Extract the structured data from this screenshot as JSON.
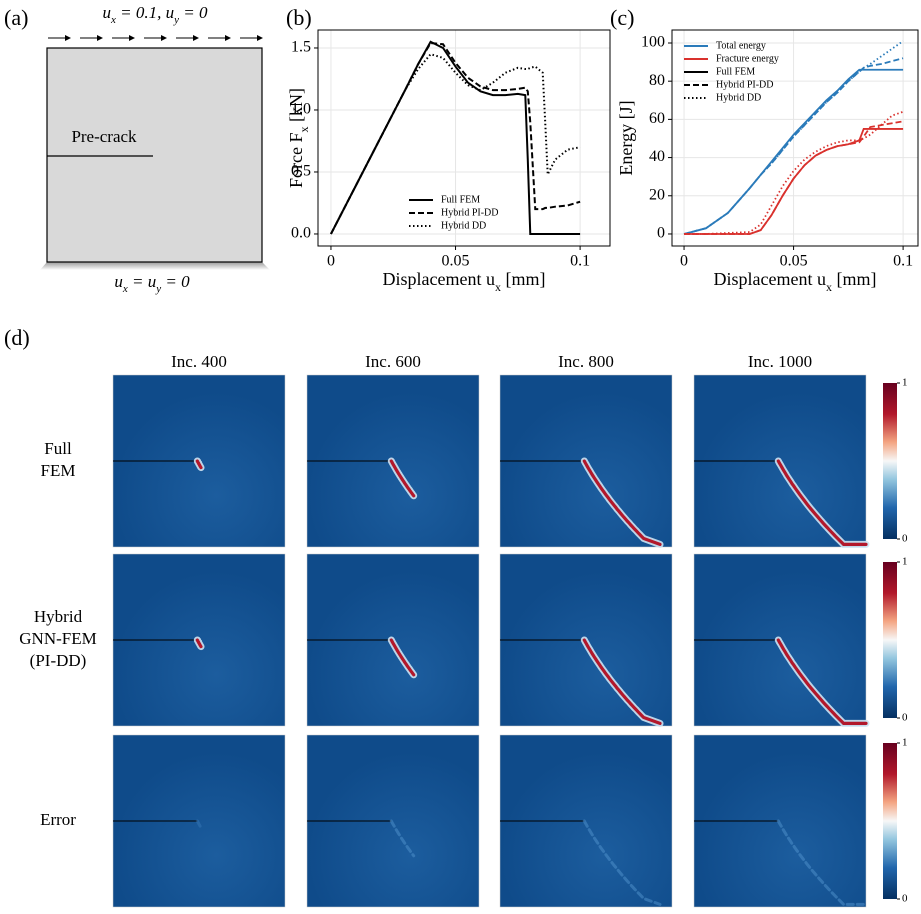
{
  "panel_labels": [
    "(a)",
    "(b)",
    "(c)",
    "(d)"
  ],
  "schematic": {
    "top_bc": [
      "u",
      "x",
      " = 0.1,  ",
      "u",
      "y",
      " = 0"
    ],
    "crack_label": "Pre-crack",
    "bottom_bc": [
      "u",
      "x",
      " = ",
      "u",
      "y",
      " = 0"
    ]
  },
  "chart_data": [
    {
      "type": "line",
      "x_label": [
        "Displacement  u",
        "x",
        "  [mm]"
      ],
      "y_label": [
        "Force  F",
        "x",
        "  [kN]"
      ],
      "x": [
        0,
        0.01,
        0.02,
        0.03,
        0.035,
        0.04,
        0.045,
        0.05,
        0.055,
        0.06,
        0.065,
        0.07,
        0.075,
        0.078,
        0.079,
        0.08,
        0.082,
        0.085,
        0.086,
        0.087,
        0.09,
        0.095,
        0.1
      ],
      "series": [
        {
          "name": "Full FEM",
          "color": "#000000",
          "dash": "solid",
          "values": [
            0,
            0.39,
            0.78,
            1.17,
            1.37,
            1.55,
            1.5,
            1.35,
            1.22,
            1.15,
            1.12,
            1.12,
            1.13,
            1.12,
            0.6,
            0,
            0,
            0,
            0,
            0,
            0,
            0,
            0
          ]
        },
        {
          "name": "Hybrid PI-DD",
          "color": "#000000",
          "dash": "dashed",
          "values": [
            0,
            0.39,
            0.78,
            1.17,
            1.37,
            1.54,
            1.53,
            1.38,
            1.26,
            1.19,
            1.16,
            1.16,
            1.17,
            1.18,
            1.15,
            0.9,
            0.2,
            0.2,
            0.21,
            0.21,
            0.22,
            0.23,
            0.26
          ]
        },
        {
          "name": "Hybrid DD",
          "color": "#000000",
          "dash": "dotted",
          "values": [
            0,
            0.39,
            0.78,
            1.17,
            1.33,
            1.45,
            1.42,
            1.3,
            1.2,
            1.16,
            1.22,
            1.3,
            1.34,
            1.33,
            1.33,
            1.34,
            1.35,
            1.3,
            0.9,
            0.48,
            0.6,
            0.68,
            0.7
          ]
        }
      ],
      "xlim": [
        -0.0052,
        0.112
      ],
      "ylim": [
        -0.097,
        1.645
      ],
      "xticks": [
        0,
        0.05,
        0.1
      ],
      "yticks": [
        {
          "value": 0,
          "label": "0.0"
        },
        0.5,
        {
          "value": 1,
          "label": "1.0"
        },
        1.5
      ],
      "grid": true,
      "legend": "lower center"
    },
    {
      "type": "line",
      "x_label": [
        "Displacement  u",
        "x",
        "  [mm]"
      ],
      "y_label": [
        "Energy [J]"
      ],
      "x": [
        0,
        0.01,
        0.02,
        0.03,
        0.035,
        0.04,
        0.045,
        0.05,
        0.055,
        0.06,
        0.065,
        0.07,
        0.075,
        0.08,
        0.082,
        0.085,
        0.09,
        0.095,
        0.1
      ],
      "series": [
        {
          "name": "Total energy",
          "method": "Full FEM",
          "color": "#2b7bba",
          "dash": "solid",
          "values": [
            0,
            3,
            11,
            24,
            31,
            38,
            45,
            52,
            58,
            64,
            70,
            75,
            81,
            86,
            86,
            86,
            86,
            86,
            86
          ]
        },
        {
          "name": "Total energy",
          "method": "Hybrid PI-DD",
          "color": "#2b7bba",
          "dash": "dashed",
          "values": [
            0,
            3,
            11,
            24,
            31,
            37,
            44,
            51,
            57,
            63,
            69,
            74,
            80,
            85,
            87,
            88,
            89,
            90.5,
            92
          ]
        },
        {
          "name": "Total energy",
          "method": "Hybrid DD",
          "color": "#2b7bba",
          "dash": "dotted",
          "values": [
            0,
            3,
            11,
            24,
            31,
            37,
            44,
            51,
            57,
            63,
            69,
            74,
            80,
            85,
            87,
            89,
            93,
            97,
            101
          ]
        },
        {
          "name": "Fracture energy",
          "method": "Full FEM",
          "color": "#d9312d",
          "dash": "solid",
          "values": [
            0,
            0,
            0,
            0,
            2,
            10,
            20,
            29,
            36,
            41,
            44,
            46,
            47,
            49,
            55,
            55,
            55,
            55,
            55
          ]
        },
        {
          "name": "Fracture energy",
          "method": "Hybrid PI-DD",
          "color": "#d9312d",
          "dash": "dashed",
          "values": [
            0,
            0,
            0,
            0,
            2,
            10,
            20,
            29,
            36,
            41,
            44,
            46,
            47,
            48,
            51,
            56,
            57,
            58,
            59
          ]
        },
        {
          "name": "Fracture energy",
          "method": "Hybrid DD",
          "color": "#d9312d",
          "dash": "dotted",
          "values": [
            0,
            0,
            0.5,
            1,
            5,
            15,
            25,
            33,
            39,
            43,
            46,
            48,
            49,
            49,
            50,
            52,
            57,
            62,
            64
          ]
        }
      ],
      "xlim": [
        -0.0055,
        0.1068
      ],
      "ylim": [
        -6.3,
        106.8
      ],
      "xticks": [
        0,
        0.05,
        0.1
      ],
      "yticks": [
        0,
        20,
        40,
        60,
        80,
        100
      ],
      "grid": true,
      "legend": "upper left"
    }
  ],
  "fields": {
    "columns": [
      "Inc. 400",
      "Inc. 600",
      "Inc. 800",
      "Inc. 1000"
    ],
    "rows": [
      [
        "Full",
        "FEM"
      ],
      [
        "Hybrid",
        "GNN-FEM",
        "(PI-DD)"
      ],
      [
        "Error"
      ]
    ],
    "colorbar_ticks": [
      0,
      1
    ]
  }
}
